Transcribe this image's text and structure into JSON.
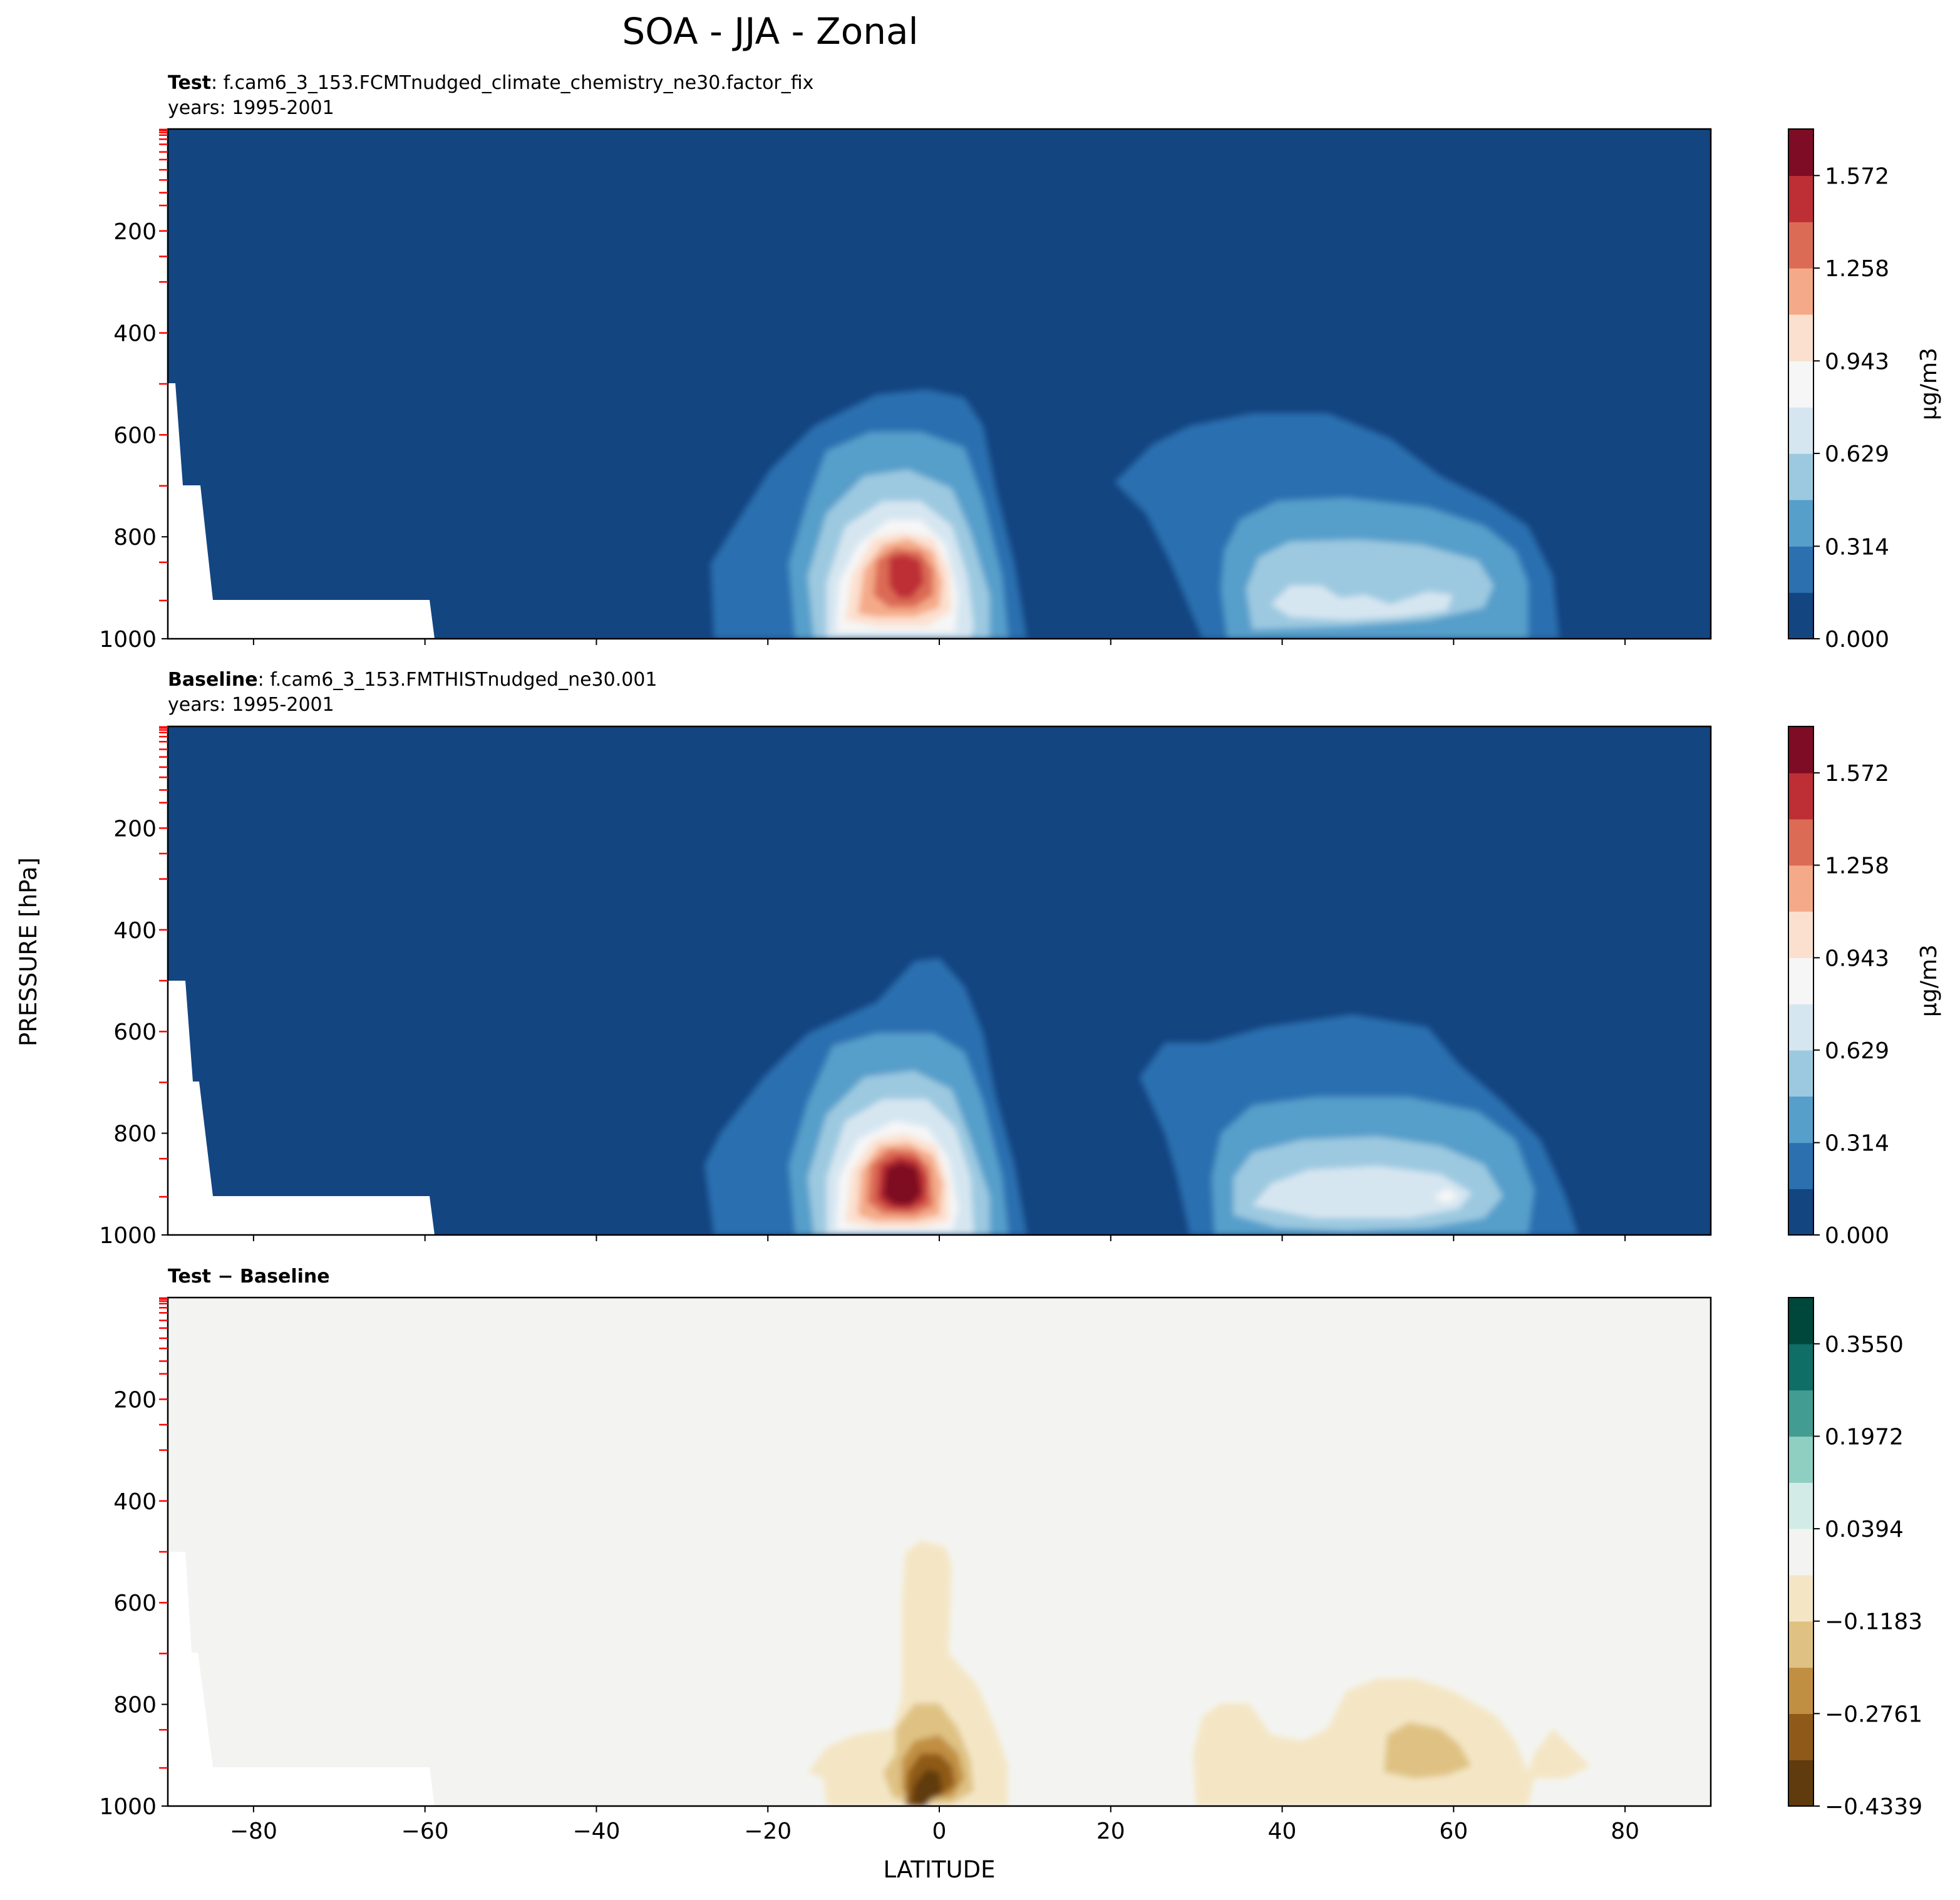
{
  "figure": {
    "title": "SOA - JJA - Zonal",
    "ylabel": "PRESSURE [hPa]",
    "xlabel": "LATITUDE"
  },
  "panels": [
    {
      "id": "test",
      "label_bold": "Test",
      "label_rest": ": f.cam6_3_153.FCMTnudged_climate_chemistry_ne30.factor_fix",
      "years": "years: 1995-2001"
    },
    {
      "id": "baseline",
      "label_bold": "Baseline",
      "label_rest": ": f.cam6_3_153.FMTHISTnudged_ne30.001",
      "years": "years: 1995-2001"
    },
    {
      "id": "diff",
      "label_bold": "Test − Baseline",
      "label_rest": "",
      "years": ""
    }
  ],
  "colors": {
    "rdbu": [
      "#134581",
      "#2c70b0",
      "#579fcb",
      "#9cc9e0",
      "#d6e6f1",
      "#f6f6f6",
      "#fce0cf",
      "#f4aa88",
      "#db6b55",
      "#bd2f34",
      "#7e0c24"
    ],
    "brbg": [
      "#603b0d",
      "#8f5a19",
      "#c18f42",
      "#dfc283",
      "#f4e6c5",
      "#f3f4f2",
      "#d3ebe6",
      "#8fcfc2",
      "#429c92",
      "#0f6e65",
      "#00473b"
    ],
    "tick_marks": "#ff0000"
  },
  "chart_data": [
    {
      "type": "contour",
      "panel": "Test",
      "x": "latitude (deg)",
      "y": "pressure (hPa)",
      "xlim": [
        -90,
        90
      ],
      "ylim": [
        1000,
        0
      ],
      "xticks": [
        -80,
        -60,
        -40,
        -20,
        0,
        20,
        40,
        60,
        80
      ],
      "yticks": [
        200,
        400,
        600,
        800,
        1000
      ],
      "colorbar": {
        "levels": [
          0.0,
          0.157,
          0.314,
          0.472,
          0.629,
          0.786,
          0.943,
          1.101,
          1.258,
          1.415,
          1.572,
          1.73
        ],
        "tick_labels": [
          "0.000",
          "0.314",
          "0.629",
          "0.943",
          "1.258",
          "1.572"
        ],
        "label": "μg/m3"
      },
      "features": [
        {
          "name": "tropical maximum",
          "lat": -3,
          "pressure": 900,
          "value": 1.45
        },
        {
          "name": "NH mid-latitude maximum",
          "lat": 55,
          "pressure": 930,
          "value": 0.72
        },
        {
          "name": "missing data (Antarctica)",
          "lat_range": [
            -90,
            -59
          ],
          "pressure_top": 500
        }
      ]
    },
    {
      "type": "contour",
      "panel": "Baseline",
      "x": "latitude (deg)",
      "y": "pressure (hPa)",
      "xlim": [
        -90,
        90
      ],
      "ylim": [
        1000,
        0
      ],
      "xticks": [
        -80,
        -60,
        -40,
        -20,
        0,
        20,
        40,
        60,
        80
      ],
      "yticks": [
        200,
        400,
        600,
        800,
        1000
      ],
      "colorbar": {
        "levels": [
          0.0,
          0.157,
          0.314,
          0.472,
          0.629,
          0.786,
          0.943,
          1.101,
          1.258,
          1.415,
          1.572,
          1.73
        ],
        "tick_labels": [
          "0.000",
          "0.314",
          "0.629",
          "0.943",
          "1.258",
          "1.572"
        ],
        "label": "μg/m3"
      },
      "features": [
        {
          "name": "tropical maximum",
          "lat": -2,
          "pressure": 900,
          "value": 1.65
        },
        {
          "name": "NH mid-latitude maximum",
          "lat": 55,
          "pressure": 930,
          "value": 0.8
        }
      ]
    },
    {
      "type": "contour",
      "panel": "Test − Baseline",
      "x": "latitude (deg)",
      "y": "pressure (hPa)",
      "xlim": [
        -90,
        90
      ],
      "ylim": [
        1000,
        0
      ],
      "xticks": [
        -80,
        -60,
        -40,
        -20,
        0,
        20,
        40,
        60,
        80
      ],
      "yticks": [
        200,
        400,
        600,
        800,
        1000
      ],
      "colorbar": {
        "levels": [
          -0.4339,
          -0.355,
          -0.2761,
          -0.1972,
          -0.1183,
          -0.0394,
          0.0394,
          0.1183,
          0.1972,
          0.2761,
          0.355,
          0.4339
        ],
        "tick_labels": [
          "−0.4339",
          "−0.2761",
          "−0.1183",
          "0.0394",
          "0.1972",
          "0.3550"
        ],
        "label": ""
      },
      "features": [
        {
          "name": "tropical minimum",
          "lat": -3,
          "pressure": 930,
          "value": -0.4
        },
        {
          "name": "NH mid-latitude minimum",
          "lat": 55,
          "pressure": 900,
          "value": -0.16
        }
      ]
    }
  ]
}
